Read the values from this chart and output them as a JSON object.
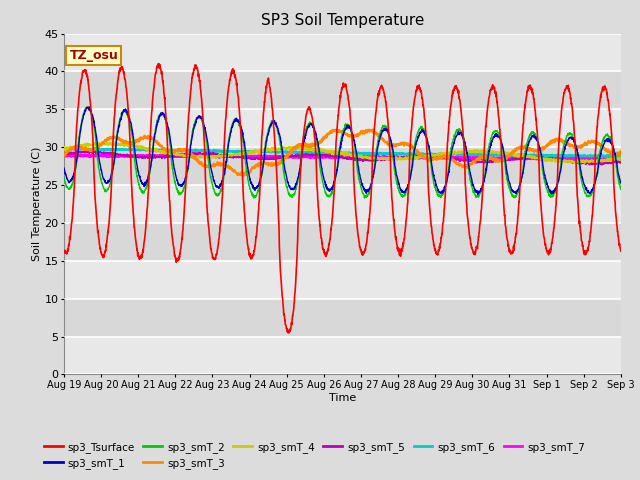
{
  "title": "SP3 Soil Temperature",
  "xlabel": "Time",
  "ylabel": "Soil Temperature (C)",
  "ylim": [
    0,
    45
  ],
  "n_days": 15,
  "annotation": "TZ_osu",
  "annotation_bg": "#FFFFCC",
  "annotation_border": "#CC8800",
  "bg_outer": "#DCDCDC",
  "bg_plot_light": "#F0F0F0",
  "bg_plot_dark": "#D8D8D8",
  "grid_color": "white",
  "series_colors": {
    "sp3_Tsurface": "#FF0000",
    "sp3_smT_1": "#0000CC",
    "sp3_smT_2": "#00CC00",
    "sp3_smT_3": "#FF8800",
    "sp3_smT_4": "#CCCC00",
    "sp3_smT_5": "#BB00BB",
    "sp3_smT_6": "#00CCCC",
    "sp3_smT_7": "#FF00FF"
  },
  "x_tick_labels": [
    "Aug 19",
    "Aug 20",
    "Aug 21",
    "Aug 22",
    "Aug 23",
    "Aug 24",
    "Aug 25",
    "Aug 26",
    "Aug 27",
    "Aug 28",
    "Aug 29",
    "Aug 30",
    "Aug 31",
    "Sep 1",
    "Sep 2",
    "Sep 3"
  ],
  "yticks": [
    0,
    5,
    10,
    15,
    20,
    25,
    30,
    35,
    40,
    45
  ]
}
